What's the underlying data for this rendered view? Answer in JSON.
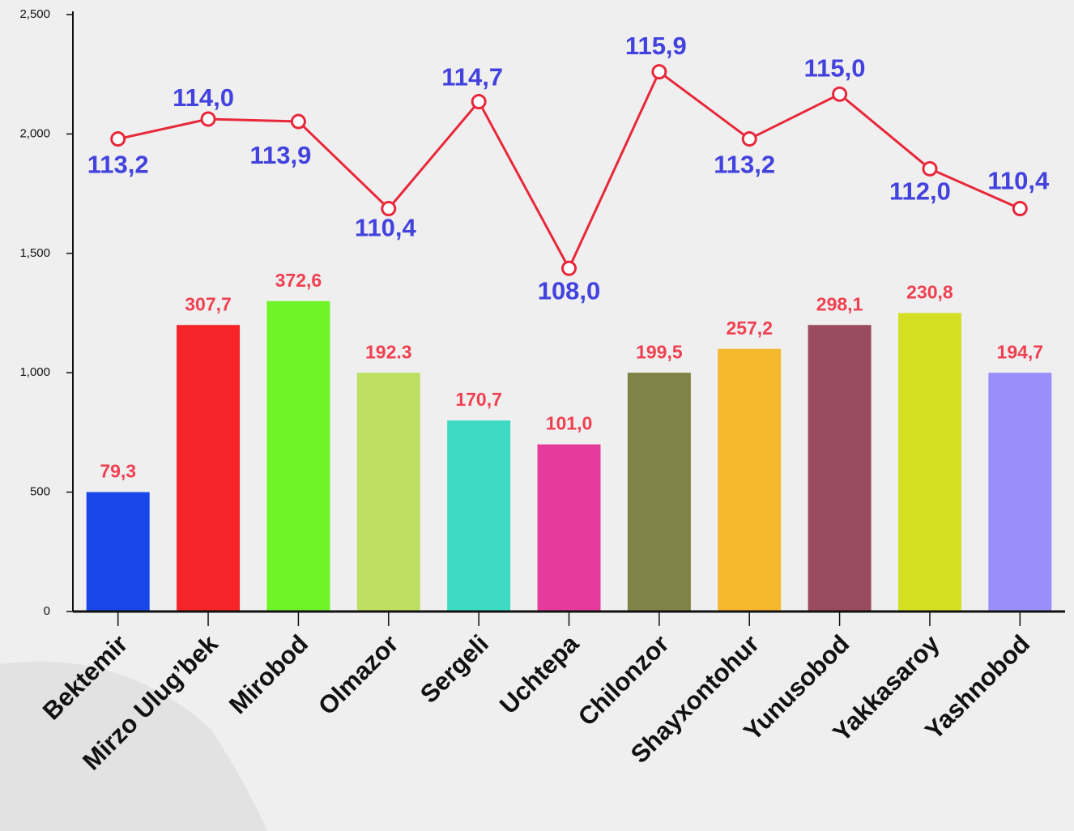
{
  "chart_data": {
    "type": "bar",
    "categories": [
      "Bektemir",
      "Mirzo Ulug’bek",
      "Mirobod",
      "Olmazor",
      "Sergeli",
      "Uchtepa",
      "Chilonzor",
      "Shayxontohur",
      "Yunusobod",
      "Yakkasaroy",
      "Yashnobod"
    ],
    "series": [
      {
        "type": "bar",
        "colors": [
          "#1846e8",
          "#f52428",
          "#6ef52a",
          "#bde063",
          "#3ddbc3",
          "#e63b9b",
          "#7f8345",
          "#f5b82e",
          "#9a4b5e",
          "#d4df24",
          "#9a8ffa"
        ],
        "values": [
          500,
          1200,
          1300,
          1000,
          800,
          700,
          1000,
          1100,
          1200,
          1250,
          1000
        ]
      },
      {
        "type": "line",
        "axis": "y2",
        "color": "#e8283a",
        "values": [
          113.2,
          114.0,
          113.9,
          110.4,
          114.7,
          108.0,
          115.9,
          113.2,
          115.0,
          112.0,
          110.4
        ],
        "value_labels": [
          "113,2",
          "114,0",
          "113,9",
          "110,4",
          "114,7",
          "108,0",
          "115,9",
          "113,2",
          "115,0",
          "112,0",
          "110,4"
        ]
      }
    ],
    "annotations": [
      "79,3",
      "307,7",
      "372,6",
      "192.3",
      "170,7",
      "101,0",
      "199,5",
      "257,2",
      "298,1",
      "230,8",
      "194,7"
    ],
    "ylim": [
      0,
      2500
    ],
    "yticks": [
      0,
      500,
      {
        "value": 1000,
        "label": "1,000"
      },
      {
        "value": 1500,
        "label": "1,500"
      },
      {
        "value": 2000,
        "label": "2,000"
      },
      {
        "value": 2500,
        "label": "2,500"
      }
    ],
    "y2lim": [
      94.2,
      118.2
    ]
  }
}
